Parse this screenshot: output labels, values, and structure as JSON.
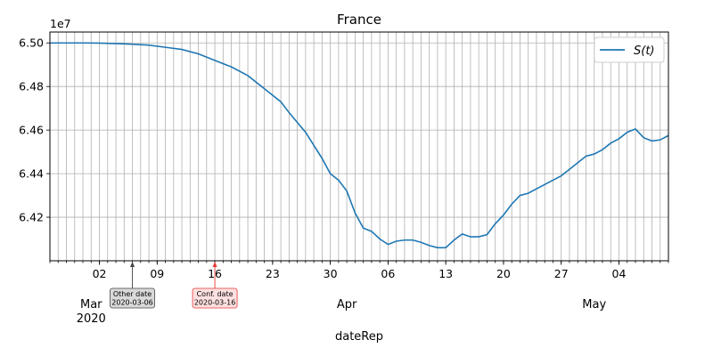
{
  "chart_data": {
    "type": "line",
    "title": "France",
    "xlabel": "dateRep",
    "ylabel": "",
    "y_offset_label": "1e7",
    "scale_factor": 10000000,
    "x_start": "2020-02-25",
    "x_end": "2020-05-10",
    "ylim": [
      64.0,
      65.05
    ],
    "grid": true,
    "legend": {
      "position": "top-right",
      "entries": [
        {
          "label": "S(t)",
          "color": "#1f77b4"
        }
      ]
    },
    "y_ticks": [
      {
        "value": 64.2,
        "label": "6.42"
      },
      {
        "value": 64.4,
        "label": "6.44"
      },
      {
        "value": 64.6,
        "label": "6.46"
      },
      {
        "value": 64.8,
        "label": "6.48"
      },
      {
        "value": 65.0,
        "label": "6.50"
      }
    ],
    "x_tick_labels": [
      {
        "date": "2020-03-02",
        "label": "02"
      },
      {
        "date": "2020-03-09",
        "label": "09"
      },
      {
        "date": "2020-03-16",
        "label": "16"
      },
      {
        "date": "2020-03-23",
        "label": "23"
      },
      {
        "date": "2020-03-30",
        "label": "30"
      },
      {
        "date": "2020-04-06",
        "label": "06"
      },
      {
        "date": "2020-04-13",
        "label": "13"
      },
      {
        "date": "2020-04-20",
        "label": "20"
      },
      {
        "date": "2020-04-27",
        "label": "27"
      },
      {
        "date": "2020-05-04",
        "label": "04"
      }
    ],
    "month_labels": [
      {
        "date": "2020-03-01",
        "label": "Mar",
        "year": "2020"
      },
      {
        "date": "2020-04-01",
        "label": "Apr"
      },
      {
        "date": "2020-05-01",
        "label": "May"
      }
    ],
    "annotations": [
      {
        "date": "2020-03-06",
        "title": "Other date",
        "value": "2020-03-06",
        "edge": "#444444",
        "fill": "#d9d9d9"
      },
      {
        "date": "2020-03-16",
        "title": "Conf. date",
        "value": "2020-03-16",
        "edge": "#e53935",
        "fill": "#fde0e0"
      }
    ],
    "series": [
      {
        "name": "S(t)",
        "color": "#1f77b4",
        "points": [
          [
            "2020-02-25",
            65.0
          ],
          [
            "2020-02-29",
            65.0
          ],
          [
            "2020-03-02",
            64.999
          ],
          [
            "2020-03-04",
            64.997
          ],
          [
            "2020-03-06",
            64.994
          ],
          [
            "2020-03-08",
            64.99
          ],
          [
            "2020-03-10",
            64.98
          ],
          [
            "2020-03-12",
            64.97
          ],
          [
            "2020-03-14",
            64.95
          ],
          [
            "2020-03-16",
            64.92
          ],
          [
            "2020-03-18",
            64.89
          ],
          [
            "2020-03-20",
            64.85
          ],
          [
            "2020-03-22",
            64.79
          ],
          [
            "2020-03-24",
            64.73
          ],
          [
            "2020-03-25",
            64.68
          ],
          [
            "2020-03-27",
            64.59
          ],
          [
            "2020-03-29",
            64.47
          ],
          [
            "2020-03-30",
            64.4
          ],
          [
            "2020-03-31",
            64.37
          ],
          [
            "2020-04-01",
            64.32
          ],
          [
            "2020-04-02",
            64.22
          ],
          [
            "2020-04-03",
            64.15
          ],
          [
            "2020-04-04",
            64.135
          ],
          [
            "2020-04-05",
            64.1
          ],
          [
            "2020-04-06",
            64.075
          ],
          [
            "2020-04-07",
            64.09
          ],
          [
            "2020-04-08",
            64.095
          ],
          [
            "2020-04-09",
            64.095
          ],
          [
            "2020-04-10",
            64.085
          ],
          [
            "2020-04-11",
            64.07
          ],
          [
            "2020-04-12",
            64.06
          ],
          [
            "2020-04-13",
            64.06
          ],
          [
            "2020-04-14",
            64.095
          ],
          [
            "2020-04-15",
            64.123
          ],
          [
            "2020-04-16",
            64.11
          ],
          [
            "2020-04-17",
            64.11
          ],
          [
            "2020-04-18",
            64.12
          ],
          [
            "2020-04-19",
            64.17
          ],
          [
            "2020-04-20",
            64.21
          ],
          [
            "2020-04-21",
            64.26
          ],
          [
            "2020-04-22",
            64.3
          ],
          [
            "2020-04-23",
            64.31
          ],
          [
            "2020-04-24",
            64.33
          ],
          [
            "2020-04-25",
            64.35
          ],
          [
            "2020-04-26",
            64.37
          ],
          [
            "2020-04-27",
            64.39
          ],
          [
            "2020-04-28",
            64.42
          ],
          [
            "2020-04-29",
            64.45
          ],
          [
            "2020-04-30",
            64.48
          ],
          [
            "2020-05-01",
            64.49
          ],
          [
            "2020-05-02",
            64.51
          ],
          [
            "2020-05-03",
            64.54
          ],
          [
            "2020-05-04",
            64.56
          ],
          [
            "2020-05-05",
            64.59
          ],
          [
            "2020-05-06",
            64.605
          ],
          [
            "2020-05-07",
            64.565
          ],
          [
            "2020-05-08",
            64.55
          ],
          [
            "2020-05-09",
            64.555
          ],
          [
            "2020-05-10",
            64.575
          ]
        ]
      }
    ]
  }
}
